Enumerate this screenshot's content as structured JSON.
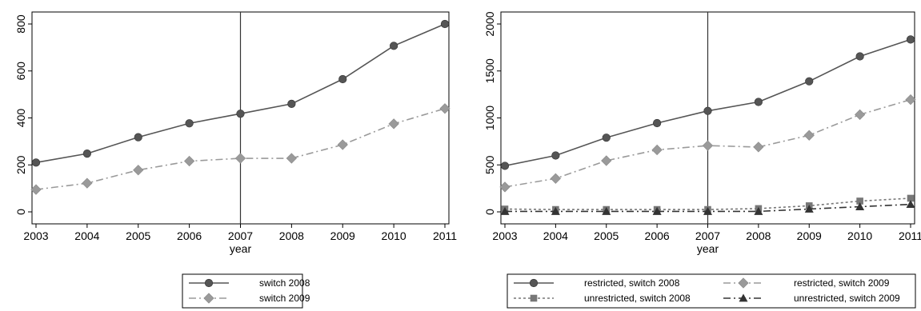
{
  "chart_data": [
    {
      "type": "line",
      "xlabel": "year",
      "ylabel": "",
      "x": [
        2003,
        2004,
        2005,
        2006,
        2007,
        2008,
        2009,
        2010,
        2011
      ],
      "xlim": [
        2003,
        2011
      ],
      "ylim": [
        0,
        800
      ],
      "yticks": [
        0,
        200,
        400,
        600,
        800
      ],
      "vertical_line_x": 2007,
      "grid": false,
      "legend_position": "bottom",
      "series": [
        {
          "name": "switch 2008",
          "values": [
            210,
            248,
            318,
            377,
            418,
            460,
            565,
            707,
            800
          ],
          "color": "#555555",
          "line_style": "solid",
          "marker": "circle"
        },
        {
          "name": "switch 2009",
          "values": [
            95,
            122,
            178,
            216,
            228,
            228,
            286,
            375,
            440
          ],
          "color": "#9a9a9a",
          "line_style": "dash-dot",
          "marker": "diamond"
        }
      ]
    },
    {
      "type": "line",
      "xlabel": "year",
      "ylabel": "",
      "x": [
        2003,
        2004,
        2005,
        2006,
        2007,
        2008,
        2009,
        2010,
        2011
      ],
      "xlim": [
        2003,
        2011
      ],
      "ylim": [
        0,
        2000
      ],
      "yticks": [
        0,
        500,
        1000,
        1500,
        2000
      ],
      "vertical_line_x": 2007,
      "grid": false,
      "legend_position": "bottom",
      "series": [
        {
          "name": "restricted, switch 2008",
          "values": [
            490,
            600,
            790,
            945,
            1075,
            1170,
            1390,
            1655,
            1835
          ],
          "color": "#555555",
          "line_style": "solid",
          "marker": "circle"
        },
        {
          "name": "restricted, switch 2009",
          "values": [
            265,
            355,
            545,
            660,
            705,
            690,
            815,
            1035,
            1195
          ],
          "color": "#9a9a9a",
          "line_style": "dash-dot",
          "marker": "diamond"
        },
        {
          "name": "unrestricted, switch 2008",
          "values": [
            30,
            25,
            25,
            25,
            25,
            35,
            65,
            115,
            145
          ],
          "color": "#777777",
          "line_style": "dotted",
          "marker": "square"
        },
        {
          "name": "unrestricted, switch 2009",
          "values": [
            5,
            5,
            5,
            5,
            5,
            5,
            30,
            55,
            80
          ],
          "color": "#333333",
          "line_style": "dash-dot",
          "marker": "triangle"
        }
      ]
    }
  ]
}
